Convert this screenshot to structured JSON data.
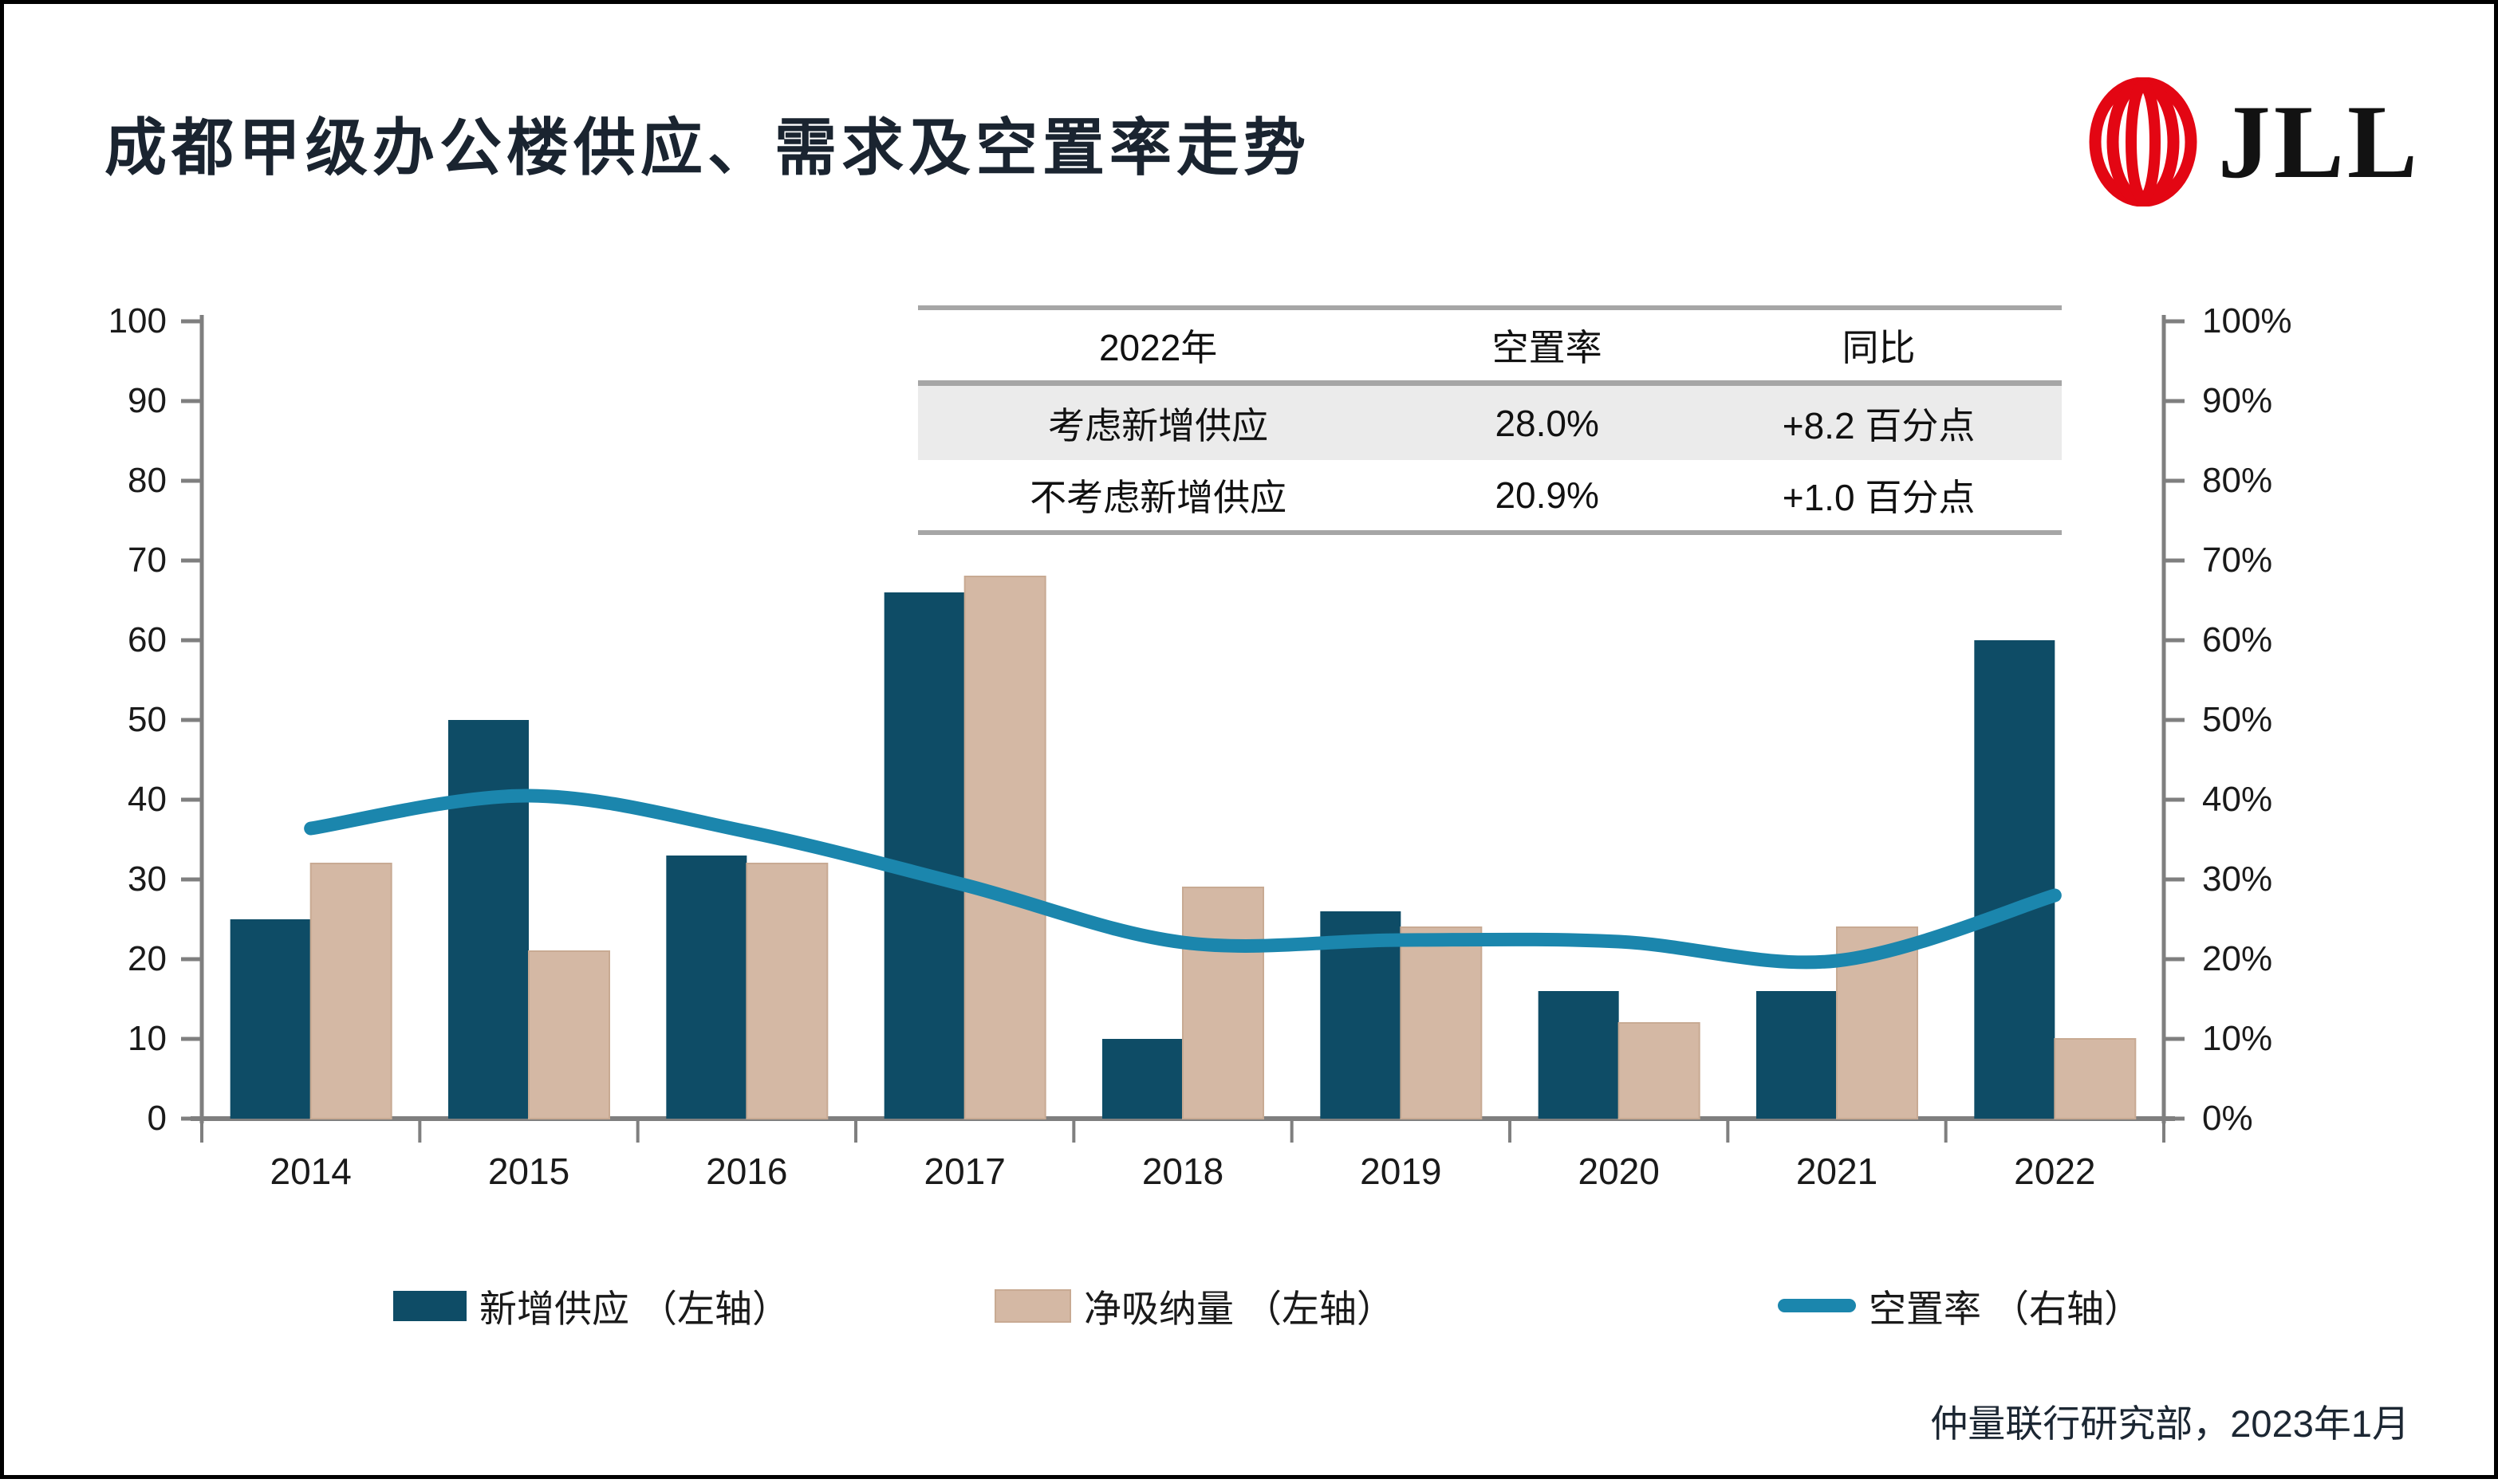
{
  "header": {
    "title": "成都甲级办公楼供应、需求及空置率走势",
    "logo_text": "JLL"
  },
  "inset_table": {
    "headers": [
      "2022年",
      "空置率",
      "同比"
    ],
    "rows": [
      {
        "label": "考虑新增供应",
        "vacancy": "28.0%",
        "yoy": "+8.2 百分点"
      },
      {
        "label": "不考虑新增供应",
        "vacancy": "20.9%",
        "yoy": "+1.0 百分点"
      }
    ]
  },
  "legend": [
    {
      "swatch": "supply-bar",
      "label": "新增供应 （左轴）"
    },
    {
      "swatch": "absorption-bar",
      "label": "净吸纳量 （左轴）"
    },
    {
      "swatch": "vacancy-line",
      "label": "空置率 （右轴）"
    }
  ],
  "footer": {
    "source": "仲量联行研究部，2023年1月"
  },
  "colors": {
    "supply": "#0e4c66",
    "absorption": "#d4b8a4",
    "absorption_border": "#c8aa93",
    "vacancy_line": "#1b86ad",
    "axis": "#7f7f7f",
    "brand_red": "#e30613",
    "row_shade": "#ebebeb"
  },
  "chart_data": {
    "type": "bar",
    "categories": [
      "2014",
      "2015",
      "2016",
      "2017",
      "2018",
      "2019",
      "2020",
      "2021",
      "2022"
    ],
    "series": [
      {
        "name": "新增供应 （左轴）",
        "type": "bar",
        "axis": "left",
        "values": [
          25,
          50,
          33,
          66,
          10,
          26,
          16,
          16,
          60
        ]
      },
      {
        "name": "净吸纳量 （左轴）",
        "type": "bar",
        "axis": "left",
        "values": [
          32,
          21,
          32,
          68,
          29,
          24,
          12,
          24,
          10
        ]
      },
      {
        "name": "空置率 （右轴）",
        "type": "line",
        "axis": "right",
        "values": [
          36.4,
          40.5,
          36.0,
          29.3,
          22.1,
          22.4,
          22.2,
          19.8,
          28.0
        ]
      }
    ],
    "left_axis": {
      "min": 0,
      "max": 100,
      "step": 10,
      "suffix": ""
    },
    "right_axis": {
      "min": 0,
      "max": 100,
      "step": 10,
      "suffix": "%"
    },
    "grid": false,
    "legend_position": "bottom"
  }
}
